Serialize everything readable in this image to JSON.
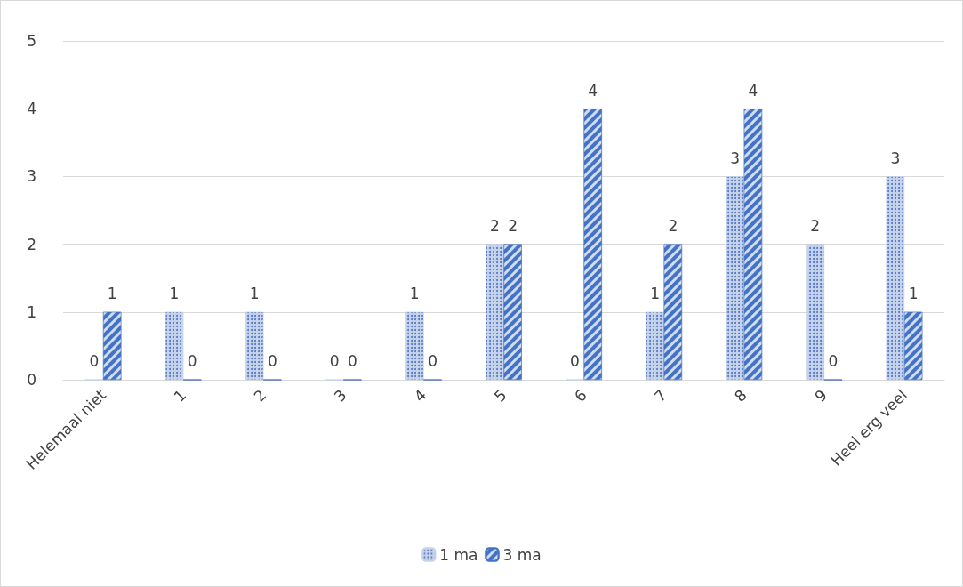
{
  "chart_data": {
    "type": "bar",
    "categories": [
      "Helemaal niet",
      "1",
      "2",
      "3",
      "4",
      "5",
      "6",
      "7",
      "8",
      "9",
      "Heel erg veel"
    ],
    "series": [
      {
        "name": "1 ma",
        "color": "#c5d3ec",
        "values": [
          0,
          1,
          1,
          0,
          1,
          2,
          0,
          1,
          3,
          2,
          3
        ]
      },
      {
        "name": "3 ma",
        "color": "#4472c4",
        "values": [
          1,
          0,
          0,
          0,
          0,
          2,
          4,
          2,
          4,
          0,
          1
        ]
      }
    ],
    "ylim": [
      0,
      5
    ],
    "yticks": [
      0,
      1,
      2,
      3,
      4,
      5
    ],
    "grid": "y",
    "legend": "bottom",
    "data_labels": true
  }
}
